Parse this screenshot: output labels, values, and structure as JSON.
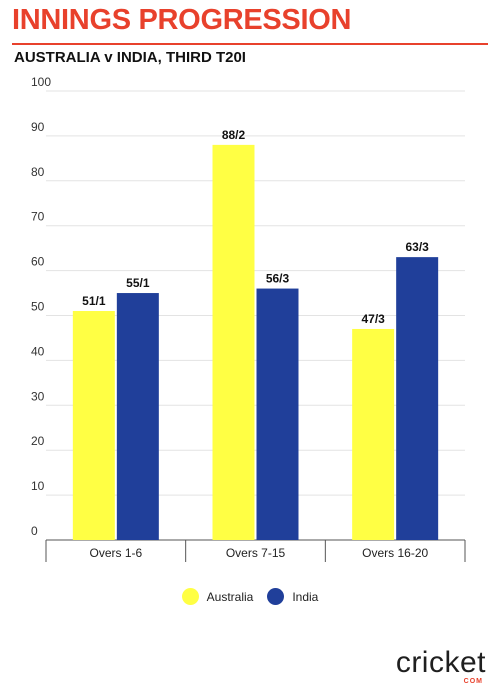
{
  "title": "INNINGS PROGRESSION",
  "subtitle": "AUSTRALIA v INDIA, THIRD T20I",
  "brand": {
    "logo_text": "cricket",
    "logo_sub": "COM"
  },
  "colors": {
    "australia": "#ffff44",
    "india": "#203f9a",
    "accent": "#e8412c"
  },
  "chart_data": {
    "type": "bar",
    "title": "INNINGS PROGRESSION",
    "subtitle": "AUSTRALIA v INDIA, THIRD T20I",
    "categories": [
      "Overs 1-6",
      "Overs 7-15",
      "Overs 16-20"
    ],
    "series": [
      {
        "name": "Australia",
        "values": [
          51,
          88,
          47
        ],
        "labels": [
          "51/1",
          "88/2",
          "47/3"
        ]
      },
      {
        "name": "India",
        "values": [
          55,
          56,
          63
        ],
        "labels": [
          "55/1",
          "56/3",
          "63/3"
        ]
      }
    ],
    "ylim": [
      0,
      100
    ],
    "yticks": [
      0,
      10,
      20,
      30,
      40,
      50,
      60,
      70,
      80,
      90,
      100
    ],
    "grid": true,
    "legend": "bottom-center"
  }
}
